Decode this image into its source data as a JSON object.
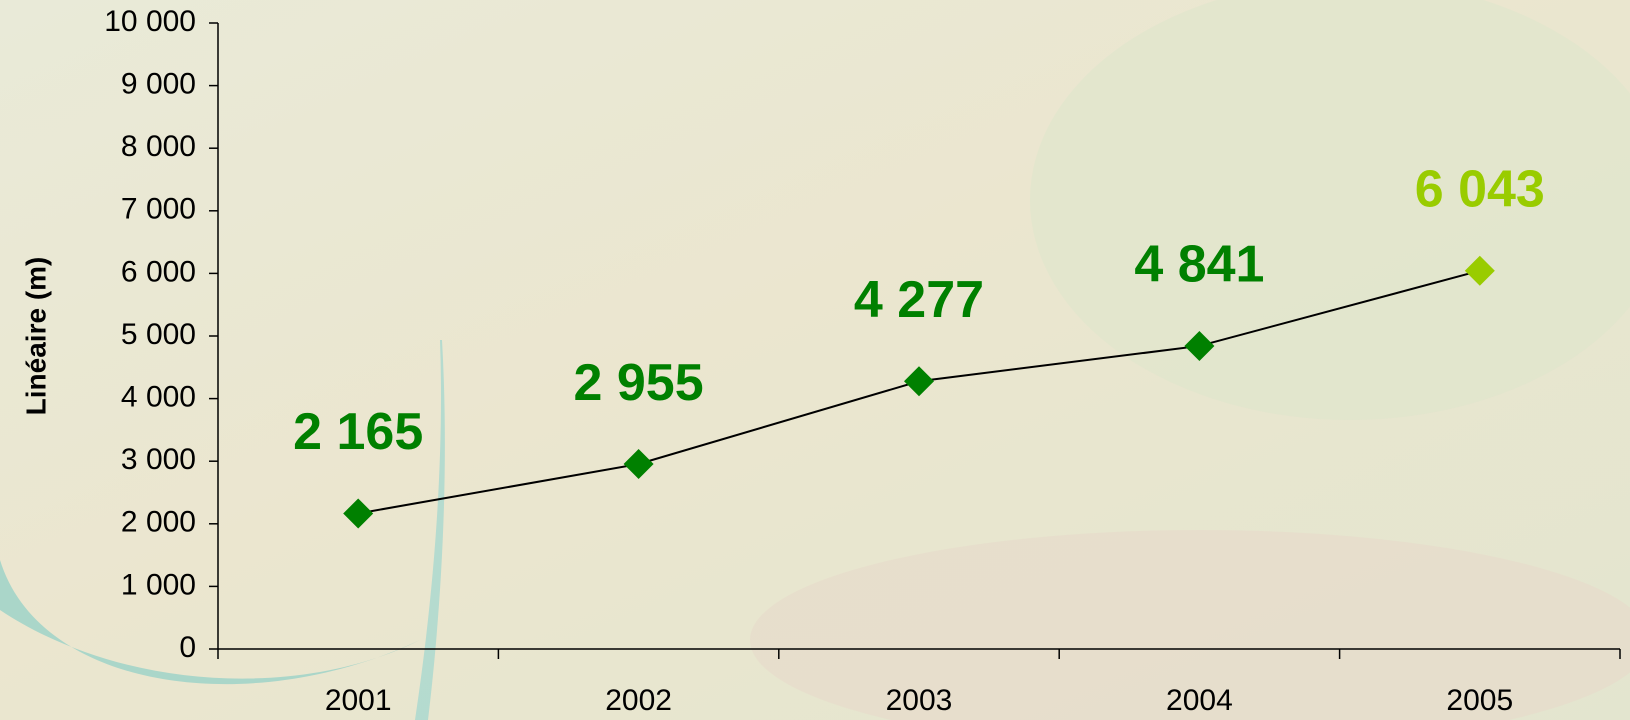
{
  "chart_data": {
    "type": "line",
    "y_label": "Linéaire (m)",
    "categories": [
      "2001",
      "2002",
      "2003",
      "2004",
      "2005"
    ],
    "series": [
      {
        "values": [
          2165,
          2955,
          4277,
          4841,
          6043
        ],
        "value_labels": [
          "2 165",
          "2 955",
          "4 277",
          "4 841",
          "6 043"
        ],
        "color": "#000000",
        "marker_colors": [
          "#008000",
          "#008000",
          "#008000",
          "#008000",
          "#99cc00"
        ]
      }
    ],
    "ylim": [
      0,
      10000
    ],
    "yticks": [
      0,
      {
        "value": 1000,
        "label": "1 000"
      },
      {
        "value": 2000,
        "label": "2 000"
      },
      {
        "value": 3000,
        "label": "3 000"
      },
      {
        "value": 4000,
        "label": "4 000"
      },
      {
        "value": 5000,
        "label": "5 000"
      },
      {
        "value": 6000,
        "label": "6 000"
      },
      {
        "value": 7000,
        "label": "7 000"
      },
      {
        "value": 8000,
        "label": "8 000"
      },
      {
        "value": 9000,
        "label": "9 000"
      },
      {
        "value": 10000,
        "label": "10 000"
      }
    ]
  }
}
